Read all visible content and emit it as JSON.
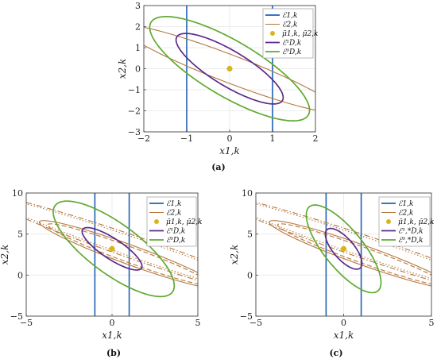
{
  "colors": {
    "E1": "#1f5fb4",
    "E2": "#b5763a",
    "mu": "#d9b51a",
    "ED1": "#5c2a8c",
    "ED0": "#5faa2f",
    "grid": "#e7e7e7",
    "axis": "#444444"
  },
  "chart_data": [
    {
      "caption": "(a)",
      "type": "line",
      "xlabel": "x1,k",
      "ylabel": "x2,k",
      "xlim": [
        -2,
        2
      ],
      "ylim": [
        -3,
        3
      ],
      "xticks": [
        -2,
        -1,
        0,
        1,
        2
      ],
      "yticks": [
        -3,
        -2,
        -1,
        0,
        1,
        2,
        3
      ],
      "grid": true,
      "legend_position": "top-right",
      "legend": [
        "ℰ1,k",
        "ℰ2,k",
        "μ̄1,k, μ̄2,k",
        "ℰ¹D,k",
        "ℰ⁰D,k"
      ],
      "series": [
        {
          "name": "ℰ1,k",
          "kind": "vlines",
          "x": [
            -1,
            1
          ],
          "color_key": "E1"
        },
        {
          "name": "ℰ2,k",
          "kind": "ellipse",
          "cx": 0,
          "cy": 0,
          "a": 3.2,
          "b": 0.55,
          "angle_deg": -39,
          "color_key": "E2",
          "dash": "solid"
        },
        {
          "name": "μ̄1,k, μ̄2,k",
          "kind": "point",
          "x": 0,
          "y": 0,
          "color_key": "mu"
        },
        {
          "name": "ℰ¹D,k",
          "kind": "ellipse",
          "cx": 0,
          "cy": 0,
          "a": 2.0,
          "b": 0.6,
          "angle_deg": -55,
          "color_key": "ED1",
          "dash": "solid"
        },
        {
          "name": "ℰ⁰D,k",
          "kind": "ellipse",
          "cx": 0,
          "cy": 0,
          "a": 2.95,
          "b": 0.95,
          "angle_deg": -55,
          "color_key": "ED0",
          "dash": "solid"
        }
      ]
    },
    {
      "caption": "(b)",
      "type": "line",
      "xlabel": "x1,k",
      "ylabel": "x2,k",
      "xlim": [
        -5,
        5
      ],
      "ylim": [
        -5,
        10
      ],
      "xticks": [
        -5,
        0,
        5
      ],
      "yticks": [
        -5,
        0,
        5,
        10
      ],
      "grid": true,
      "legend_position": "top-right",
      "legend": [
        "ℰ1,k",
        "ℰ2,k",
        "μ̄1,k, μ̄2,k",
        "ℰ¹D,k",
        "ℰ⁰D,k"
      ],
      "series": [
        {
          "name": "ℰ1,k",
          "kind": "vlines",
          "x": [
            -1,
            1
          ],
          "color_key": "E1"
        },
        {
          "name": "ℰ2,k",
          "kind": "ellipse",
          "cx": 1.5,
          "cy": 3.2,
          "a": 11.0,
          "b": 1.2,
          "angle_deg": -36,
          "color_key": "E2",
          "dash": "dashdot"
        },
        {
          "name": "ℰ2,k",
          "kind": "ellipse",
          "cx": 1.5,
          "cy": 3.2,
          "a": 10.7,
          "b": 1.0,
          "angle_deg": -36,
          "color_key": "E2",
          "dash": "dotted"
        },
        {
          "name": "ℰ2,k",
          "kind": "ellipse",
          "cx": 1.0,
          "cy": 2.5,
          "a": 6.6,
          "b": 1.0,
          "angle_deg": -38,
          "color_key": "E2",
          "dash": "solid"
        },
        {
          "name": "ℰ2,k",
          "kind": "ellipse",
          "cx": 1.0,
          "cy": 2.5,
          "a": 6.0,
          "b": 0.8,
          "angle_deg": -38,
          "color_key": "E2",
          "dash": "dashed"
        },
        {
          "name": "μ̄1,k, μ̄2,k",
          "kind": "point",
          "x": 0,
          "y": 3.2,
          "color_key": "mu"
        },
        {
          "name": "ℰ¹D,k",
          "kind": "ellipse",
          "cx": 0,
          "cy": 3.2,
          "a": 3.0,
          "b": 0.85,
          "angle_deg": -58,
          "color_key": "ED1",
          "dash": "solid"
        },
        {
          "name": "ℰ⁰D,k",
          "kind": "ellipse",
          "cx": 0.1,
          "cy": 3.2,
          "a": 6.5,
          "b": 2.0,
          "angle_deg": -62,
          "color_key": "ED0",
          "dash": "solid"
        }
      ]
    },
    {
      "caption": "(c)",
      "type": "line",
      "xlabel": "x1,k",
      "ylabel": "x2,k",
      "xlim": [
        -5,
        5
      ],
      "ylim": [
        -5,
        10
      ],
      "xticks": [
        -5,
        0,
        5
      ],
      "yticks": [
        -5,
        0,
        5,
        10
      ],
      "grid": true,
      "legend_position": "top-right",
      "legend": [
        "ℰ1,k",
        "ℰ2,k",
        "μ̄1,k, μ̄2,k",
        "ℰ¹,*D,k",
        "ℰ⁰,*D,k"
      ],
      "series": [
        {
          "name": "ℰ1,k",
          "kind": "vlines",
          "x": [
            -1,
            1
          ],
          "color_key": "E1"
        },
        {
          "name": "ℰ2,k",
          "kind": "ellipse",
          "cx": 1.5,
          "cy": 3.2,
          "a": 11.0,
          "b": 1.2,
          "angle_deg": -36,
          "color_key": "E2",
          "dash": "dashdot"
        },
        {
          "name": "ℰ2,k",
          "kind": "ellipse",
          "cx": 1.5,
          "cy": 3.2,
          "a": 10.7,
          "b": 1.0,
          "angle_deg": -36,
          "color_key": "E2",
          "dash": "dotted"
        },
        {
          "name": "ℰ2,k",
          "kind": "ellipse",
          "cx": 1.0,
          "cy": 2.5,
          "a": 6.6,
          "b": 1.0,
          "angle_deg": -38,
          "color_key": "E2",
          "dash": "solid"
        },
        {
          "name": "ℰ2,k",
          "kind": "ellipse",
          "cx": 1.0,
          "cy": 2.5,
          "a": 6.0,
          "b": 0.8,
          "angle_deg": -38,
          "color_key": "E2",
          "dash": "dashed"
        },
        {
          "name": "μ̄1,k, μ̄2,k",
          "kind": "point",
          "x": 0,
          "y": 3.2,
          "color_key": "mu"
        },
        {
          "name": "ℰ¹,*D,k",
          "kind": "ellipse",
          "cx": 0,
          "cy": 3.2,
          "a": 2.6,
          "b": 0.7,
          "angle_deg": -72,
          "color_key": "ED1",
          "dash": "solid"
        },
        {
          "name": "ℰ⁰,*D,k",
          "kind": "ellipse",
          "cx": 0,
          "cy": 3.2,
          "a": 5.6,
          "b": 1.3,
          "angle_deg": -72,
          "color_key": "ED0",
          "dash": "solid"
        }
      ]
    }
  ]
}
